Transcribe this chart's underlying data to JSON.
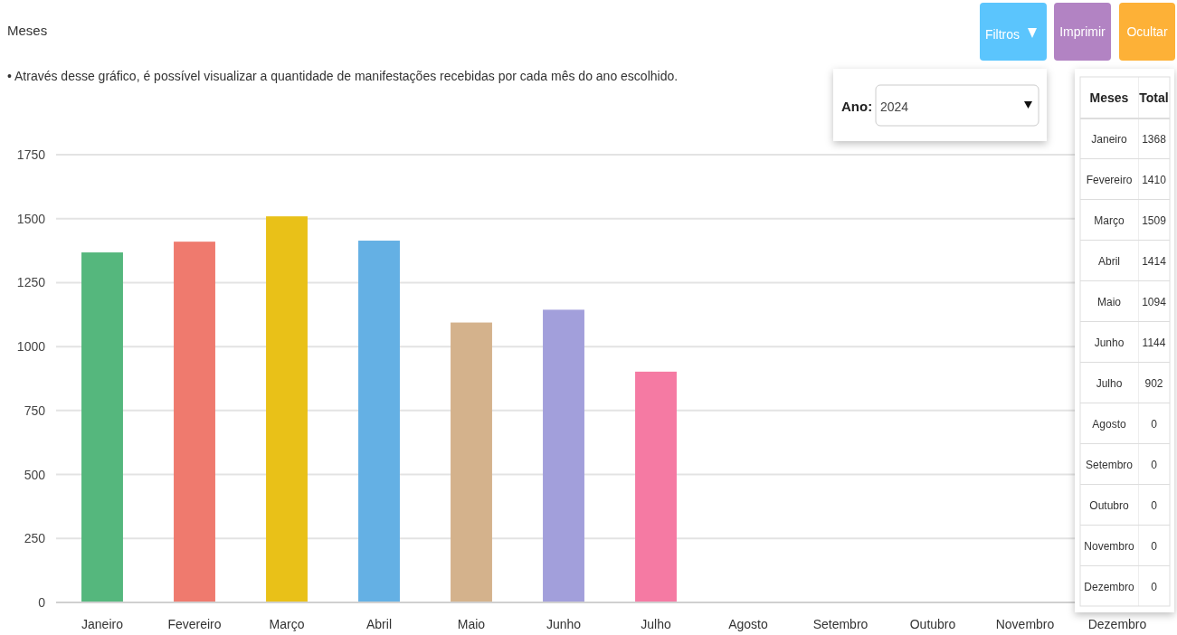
{
  "chart_data": [
    {
      "type": "bar",
      "title": "Meses",
      "subtitle": "• Através desse gráfico, é possível visualizar a quantidade de manifestações recebidas por cada mês do ano escolhido.",
      "categories": [
        "Janeiro",
        "Fevereiro",
        "Março",
        "Abril",
        "Maio",
        "Junho",
        "Julho",
        "Agosto",
        "Setembro",
        "Outubro",
        "Novembro",
        "Dezembro"
      ],
      "values": [
        1368,
        1410,
        1509,
        1414,
        1094,
        1144,
        902,
        0,
        0,
        0,
        0,
        0
      ],
      "colors": [
        "#55b77d",
        "#ef7a6e",
        "#e9c118",
        "#64b0e4",
        "#d4b28c",
        "#a29fdb",
        "#f57aa3",
        "#aaaaaa",
        "#e9c865",
        "#7fcfa0",
        "#e9c865",
        "#64b0e4"
      ],
      "ylim": [
        0,
        1750
      ],
      "yticks": [
        0,
        250,
        500,
        750,
        1000,
        1250,
        1500,
        1750
      ],
      "grid": "y",
      "annotations": [
        "Filtros",
        "Imprimir",
        "Ocultar",
        "Ano:",
        "2024"
      ]
    },
    {
      "type": "other",
      "annotations": [
        "Meses",
        "Total",
        "Janeiro",
        "1368",
        "Fevereiro",
        "1410",
        "Março",
        "1509",
        "Abril",
        "1414",
        "Maio",
        "1094",
        "Junho",
        "1144",
        "Julho",
        "902",
        "Agosto",
        "0",
        "Setembro",
        "0",
        "Outubro",
        "0",
        "Novembro",
        "0",
        "Dezembro",
        "0"
      ]
    }
  ]
}
